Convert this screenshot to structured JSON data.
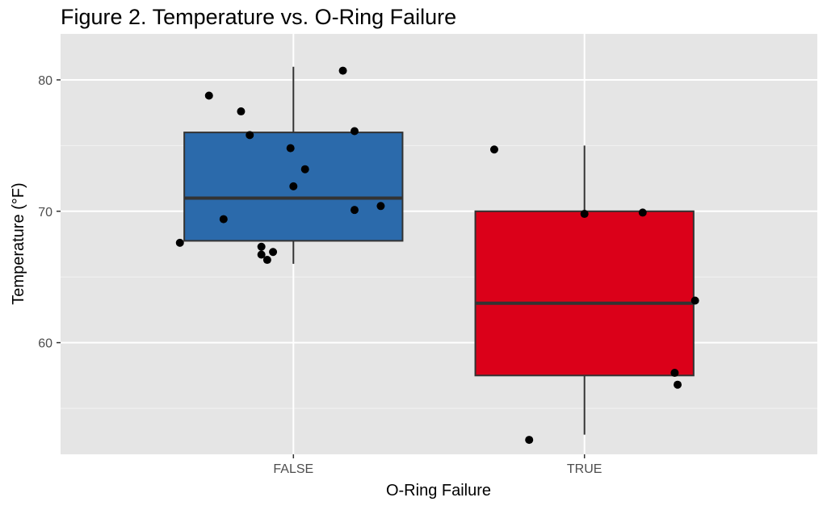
{
  "chart_data": {
    "type": "boxplot",
    "title": "Figure 2. Temperature vs. O-Ring Failure",
    "xlabel": "O-Ring Failure",
    "ylabel": "Temperature (°F)",
    "categories": [
      "FALSE",
      "TRUE"
    ],
    "ylim": [
      51.5,
      83.5
    ],
    "yticks": [
      60,
      70,
      80
    ],
    "grid": true,
    "boxes": [
      {
        "category": "FALSE",
        "color": "#2b6aab",
        "min": 66,
        "q1": 67.75,
        "median": 71,
        "q3": 76,
        "max": 81
      },
      {
        "category": "TRUE",
        "color": "#db0019",
        "min": 53,
        "q1": 57.5,
        "median": 63,
        "q3": 70,
        "max": 75
      }
    ],
    "points": [
      {
        "category": "FALSE",
        "jitter": -0.39,
        "y": 67.6
      },
      {
        "category": "FALSE",
        "jitter": -0.29,
        "y": 78.8
      },
      {
        "category": "FALSE",
        "jitter": -0.24,
        "y": 69.4
      },
      {
        "category": "FALSE",
        "jitter": -0.18,
        "y": 77.6
      },
      {
        "category": "FALSE",
        "jitter": -0.15,
        "y": 75.8
      },
      {
        "category": "FALSE",
        "jitter": -0.11,
        "y": 67.3
      },
      {
        "category": "FALSE",
        "jitter": -0.11,
        "y": 66.7
      },
      {
        "category": "FALSE",
        "jitter": -0.09,
        "y": 66.3
      },
      {
        "category": "FALSE",
        "jitter": -0.07,
        "y": 66.9
      },
      {
        "category": "FALSE",
        "jitter": -0.01,
        "y": 74.8
      },
      {
        "category": "FALSE",
        "jitter": 0.0,
        "y": 71.9
      },
      {
        "category": "FALSE",
        "jitter": 0.04,
        "y": 73.2
      },
      {
        "category": "FALSE",
        "jitter": 0.17,
        "y": 80.7
      },
      {
        "category": "FALSE",
        "jitter": 0.21,
        "y": 76.1
      },
      {
        "category": "FALSE",
        "jitter": 0.21,
        "y": 70.1
      },
      {
        "category": "FALSE",
        "jitter": 0.3,
        "y": 70.4
      },
      {
        "category": "TRUE",
        "jitter": -0.31,
        "y": 74.7
      },
      {
        "category": "TRUE",
        "jitter": -0.19,
        "y": 52.6
      },
      {
        "category": "TRUE",
        "jitter": 0.0,
        "y": 69.8
      },
      {
        "category": "TRUE",
        "jitter": 0.2,
        "y": 69.9
      },
      {
        "category": "TRUE",
        "jitter": 0.31,
        "y": 57.7
      },
      {
        "category": "TRUE",
        "jitter": 0.32,
        "y": 56.8
      },
      {
        "category": "TRUE",
        "jitter": 0.38,
        "y": 63.2
      }
    ]
  }
}
